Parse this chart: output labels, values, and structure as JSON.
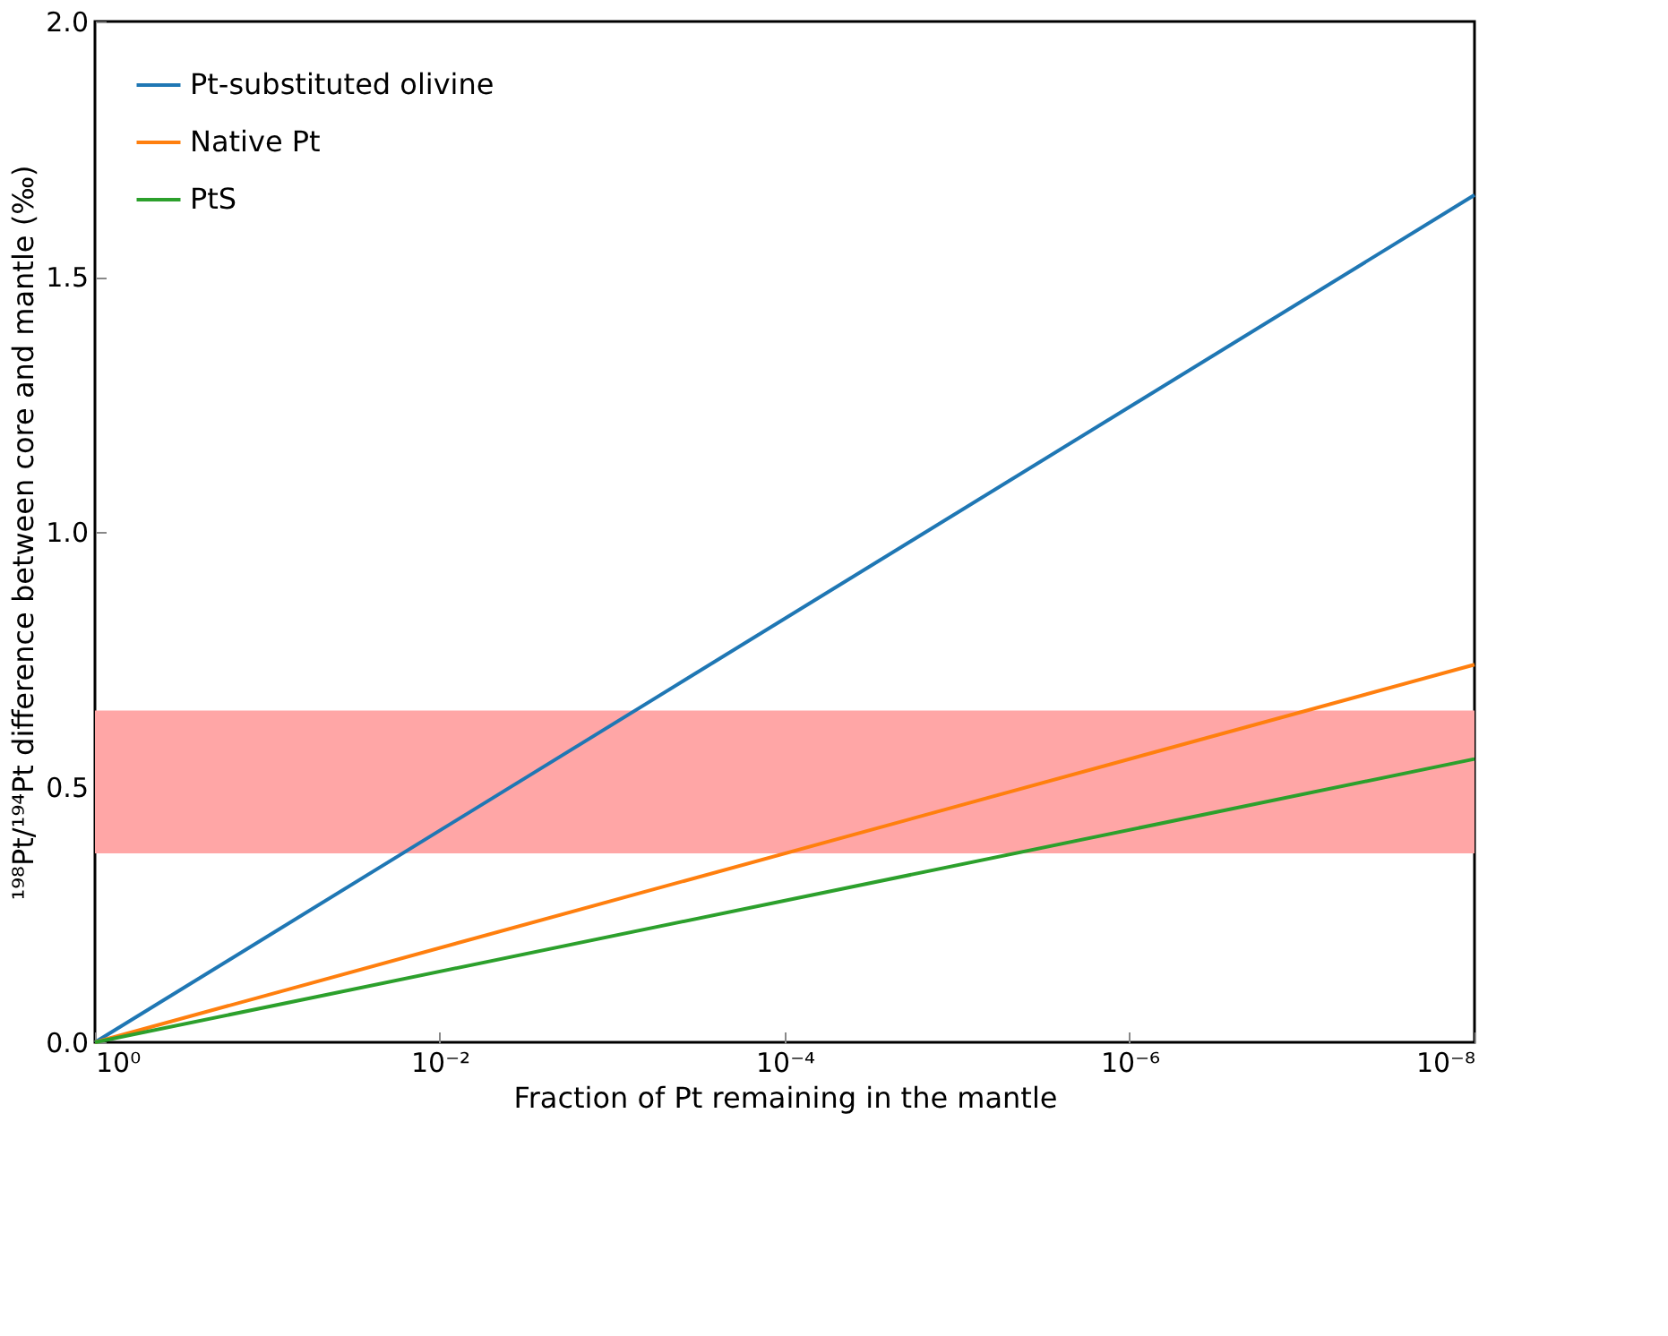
{
  "chart_data": {
    "type": "line",
    "xlabel": "Fraction of Pt remaining in the mantle",
    "ylabel": "¹⁹⁸Pt/¹⁹⁴Pt difference between core and mantle (‰)",
    "log": "x",
    "xlim": [
      1,
      1e-08
    ],
    "ylim": [
      0,
      2.0
    ],
    "xticks": [
      {
        "value": 1,
        "label": "10⁰"
      },
      {
        "value": 0.01,
        "label": "10⁻²"
      },
      {
        "value": 0.0001,
        "label": "10⁻⁴"
      },
      {
        "value": 1e-06,
        "label": "10⁻⁶"
      },
      {
        "value": 1e-08,
        "label": "10⁻⁸"
      }
    ],
    "yticks": [
      {
        "value": 0,
        "label": "0.0"
      },
      {
        "value": 0.5,
        "label": "0.5"
      },
      {
        "value": 1.0,
        "label": "1.0"
      },
      {
        "value": 1.5,
        "label": "1.5"
      },
      {
        "value": 2.0,
        "label": "2.0"
      }
    ],
    "x": [
      1,
      1e-08
    ],
    "series": [
      {
        "name": "Pt-substituted olivine",
        "color": "#1f77b4",
        "values": [
          0,
          1.66
        ]
      },
      {
        "name": "Native Pt",
        "color": "#ff7f0e",
        "values": [
          0,
          0.74
        ]
      },
      {
        "name": "PtS",
        "color": "#2ca02c",
        "values": [
          0,
          0.555
        ]
      }
    ],
    "bands": [
      {
        "axis": "y",
        "from": 0.37,
        "to": 0.65,
        "color": "#ffa6a6"
      }
    ],
    "legend": "top left",
    "grid": false,
    "marker": "none",
    "line_style": "solid"
  }
}
